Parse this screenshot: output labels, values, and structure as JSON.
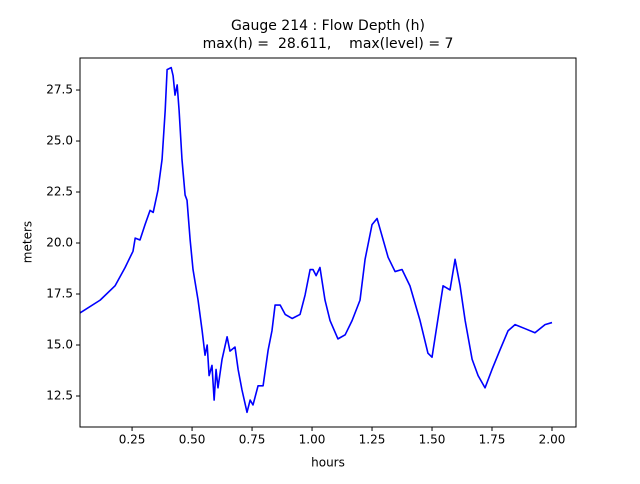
{
  "chart_data": {
    "type": "line",
    "title": "Gauge 214 : Flow Depth (h)",
    "subtitle": "max(h) =  28.611,    max(level) = 7",
    "xlabel": "hours",
    "ylabel": "meters",
    "color": "#0000ff",
    "xlim": [
      0.033,
      2.1
    ],
    "ylim": [
      10.98,
      29.07
    ],
    "xticks": [
      0.25,
      {
        "value": 0.5,
        "label": "0.50"
      },
      0.75,
      {
        "value": 1,
        "label": "1.00"
      },
      1.25,
      {
        "value": 1.5,
        "label": "1.50"
      },
      1.75,
      {
        "value": 2,
        "label": "2.00"
      }
    ],
    "yticks": [
      12.5,
      {
        "value": 15,
        "label": "15.0"
      },
      17.5,
      {
        "value": 20,
        "label": "20.0"
      },
      22.5,
      {
        "value": 25,
        "label": "25.0"
      },
      27.5
    ],
    "grid": false,
    "x": [
      0.033,
      0.117,
      0.179,
      0.221,
      0.254,
      0.263,
      0.283,
      0.304,
      0.325,
      0.338,
      0.358,
      0.375,
      0.388,
      0.396,
      0.413,
      0.421,
      0.429,
      0.438,
      0.446,
      0.458,
      0.471,
      0.479,
      0.492,
      0.504,
      0.525,
      0.542,
      0.554,
      0.563,
      0.571,
      0.583,
      0.592,
      0.6,
      0.608,
      0.625,
      0.646,
      0.658,
      0.679,
      0.692,
      0.708,
      0.729,
      0.742,
      0.754,
      0.775,
      0.796,
      0.817,
      0.833,
      0.846,
      0.867,
      0.888,
      0.917,
      0.95,
      0.971,
      0.992,
      1.004,
      1.017,
      1.033,
      1.054,
      1.075,
      1.108,
      1.138,
      1.167,
      1.2,
      1.221,
      1.25,
      1.271,
      1.288,
      1.317,
      1.346,
      1.375,
      1.408,
      1.45,
      1.483,
      1.5,
      1.521,
      1.546,
      1.575,
      1.596,
      1.617,
      1.638,
      1.667,
      1.692,
      1.721,
      1.75,
      1.783,
      1.817,
      1.846,
      1.888,
      1.929,
      1.971,
      2.0
    ],
    "values": [
      16.57,
      17.2,
      17.9,
      18.8,
      19.6,
      20.24,
      20.15,
      20.9,
      21.6,
      21.5,
      22.6,
      24.1,
      26.5,
      28.5,
      28.6,
      28.2,
      27.25,
      27.75,
      26.5,
      24.1,
      22.35,
      22.1,
      20.15,
      18.7,
      17.2,
      15.7,
      14.5,
      15.0,
      13.5,
      14.0,
      12.3,
      13.8,
      12.9,
      14.3,
      15.4,
      14.7,
      14.9,
      13.8,
      12.8,
      11.7,
      12.3,
      12.06,
      13.0,
      13.0,
      14.75,
      15.7,
      16.96,
      16.96,
      16.5,
      16.3,
      16.5,
      17.45,
      18.7,
      18.7,
      18.4,
      18.8,
      17.2,
      16.2,
      15.3,
      15.5,
      16.2,
      17.2,
      19.2,
      20.9,
      21.2,
      20.5,
      19.3,
      18.6,
      18.7,
      17.9,
      16.2,
      14.6,
      14.4,
      16.0,
      17.9,
      17.7,
      19.2,
      17.9,
      16.2,
      14.3,
      13.5,
      12.9,
      13.8,
      14.75,
      15.7,
      16.0,
      15.8,
      15.6,
      16.0,
      16.1
    ]
  }
}
